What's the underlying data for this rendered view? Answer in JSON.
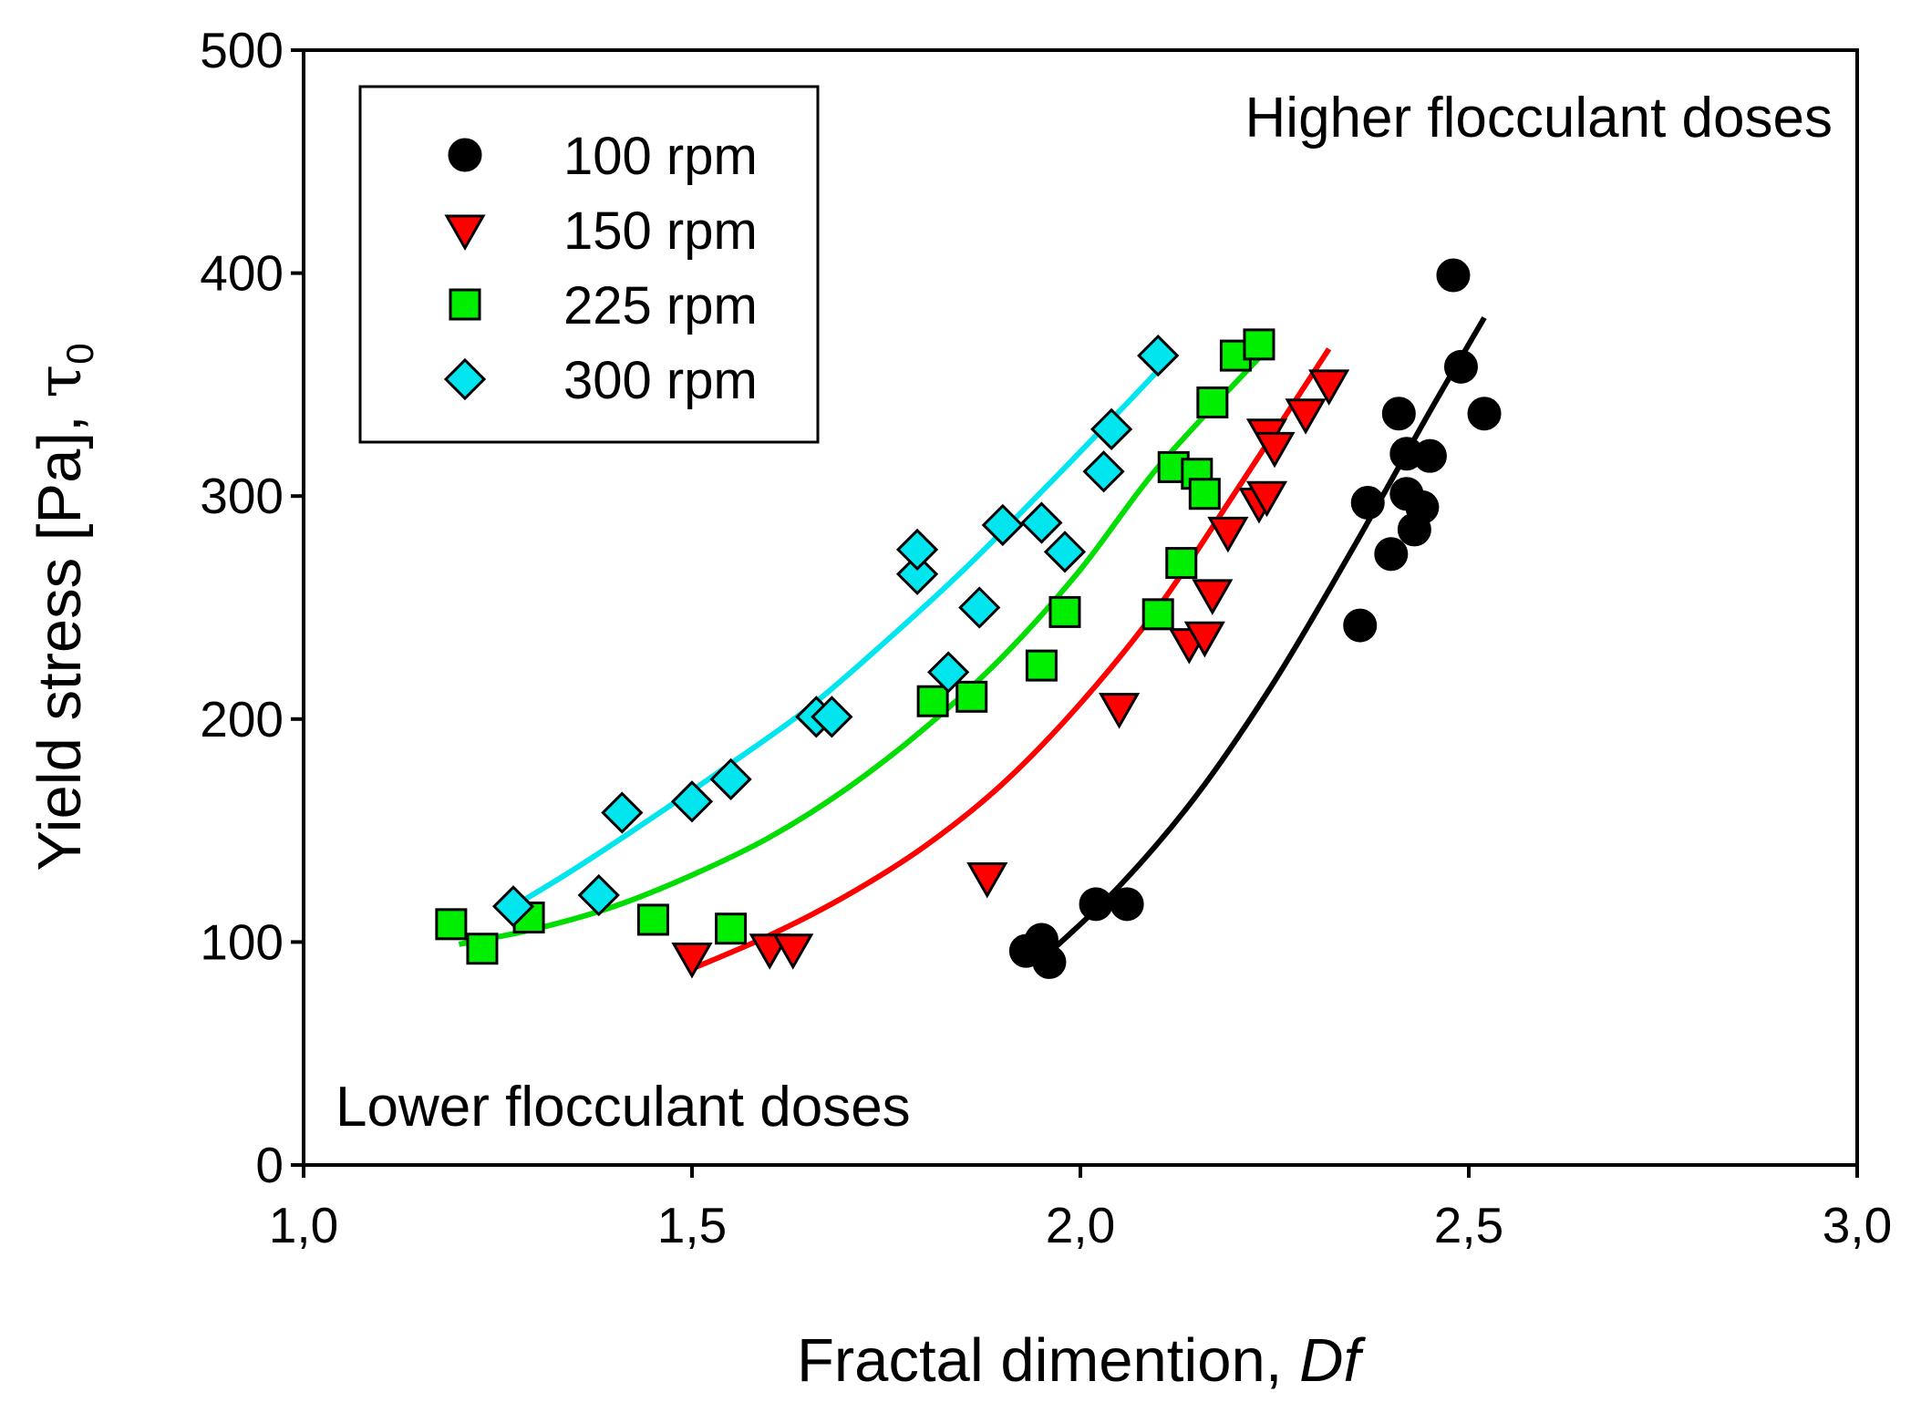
{
  "chart_data": {
    "type": "scatter",
    "title": "",
    "xlabel": "Fractal dimention, ",
    "xlabel_italic": "Df",
    "ylabel": "Yield stress [Pa], ",
    "ylabel_symbol": "τ",
    "ylabel_subscript": "0",
    "xlim": [
      1.0,
      3.0
    ],
    "ylim": [
      0,
      500
    ],
    "x_ticks": [
      1.0,
      1.5,
      2.0,
      2.5,
      3.0
    ],
    "x_tick_labels": [
      "1,0",
      "1,5",
      "2,0",
      "2,5",
      "3,0"
    ],
    "y_ticks": [
      0,
      100,
      200,
      300,
      400,
      500
    ],
    "y_tick_labels": [
      "0",
      "100",
      "200",
      "300",
      "400",
      "500"
    ],
    "grid": false,
    "legend_position": "top-left",
    "annotations": {
      "top_right": "Higher flocculant doses",
      "bottom_left": "Lower flocculant doses"
    },
    "series": [
      {
        "name": "100 rpm",
        "marker": "circle",
        "color": "#000000",
        "line_color": "#000000",
        "points": [
          [
            1.93,
            96
          ],
          [
            1.95,
            101
          ],
          [
            1.96,
            91
          ],
          [
            2.02,
            117
          ],
          [
            2.06,
            117
          ],
          [
            2.36,
            242
          ],
          [
            2.37,
            297
          ],
          [
            2.4,
            274
          ],
          [
            2.41,
            337
          ],
          [
            2.42,
            301
          ],
          [
            2.42,
            319
          ],
          [
            2.43,
            285
          ],
          [
            2.44,
            295
          ],
          [
            2.45,
            318
          ],
          [
            2.48,
            399
          ],
          [
            2.49,
            358
          ],
          [
            2.52,
            337
          ]
        ],
        "fit": [
          [
            1.95,
            92
          ],
          [
            2.05,
            125
          ],
          [
            2.15,
            166
          ],
          [
            2.25,
            217
          ],
          [
            2.35,
            276
          ],
          [
            2.45,
            338
          ],
          [
            2.52,
            380
          ]
        ]
      },
      {
        "name": "150 rpm",
        "marker": "triangle-down",
        "color": "#ff0000",
        "line_color": "#ff0000",
        "points": [
          [
            1.5,
            93
          ],
          [
            1.6,
            97
          ],
          [
            1.63,
            97
          ],
          [
            1.88,
            129
          ],
          [
            2.05,
            205
          ],
          [
            2.14,
            234
          ],
          [
            2.16,
            237
          ],
          [
            2.17,
            256
          ],
          [
            2.19,
            284
          ],
          [
            2.23,
            297
          ],
          [
            2.24,
            300
          ],
          [
            2.24,
            328
          ],
          [
            2.25,
            322
          ],
          [
            2.29,
            337
          ],
          [
            2.32,
            350
          ]
        ],
        "fit": [
          [
            1.5,
            88
          ],
          [
            1.6,
            103
          ],
          [
            1.7,
            121
          ],
          [
            1.8,
            143
          ],
          [
            1.9,
            171
          ],
          [
            2.0,
            207
          ],
          [
            2.1,
            250
          ],
          [
            2.2,
            302
          ],
          [
            2.32,
            366
          ]
        ]
      },
      {
        "name": "225 rpm",
        "marker": "square",
        "color": "#00ee00",
        "line_color": "#00dd00",
        "points": [
          [
            1.19,
            108
          ],
          [
            1.23,
            97
          ],
          [
            1.29,
            111
          ],
          [
            1.45,
            110
          ],
          [
            1.55,
            106
          ],
          [
            1.81,
            208
          ],
          [
            1.86,
            210
          ],
          [
            1.95,
            224
          ],
          [
            1.98,
            248
          ],
          [
            2.1,
            247
          ],
          [
            2.12,
            313
          ],
          [
            2.13,
            270
          ],
          [
            2.15,
            310
          ],
          [
            2.16,
            301
          ],
          [
            2.17,
            342
          ],
          [
            2.2,
            363
          ],
          [
            2.23,
            368
          ]
        ],
        "fit": [
          [
            1.2,
            99
          ],
          [
            1.3,
            106
          ],
          [
            1.4,
            116
          ],
          [
            1.5,
            130
          ],
          [
            1.6,
            147
          ],
          [
            1.7,
            169
          ],
          [
            1.8,
            196
          ],
          [
            1.9,
            228
          ],
          [
            2.0,
            267
          ],
          [
            2.1,
            313
          ],
          [
            2.23,
            362
          ]
        ]
      },
      {
        "name": "300 rpm",
        "marker": "diamond",
        "color": "#00e5ee",
        "line_color": "#00e5ee",
        "points": [
          [
            1.27,
            116
          ],
          [
            1.38,
            121
          ],
          [
            1.41,
            158
          ],
          [
            1.5,
            163
          ],
          [
            1.55,
            173
          ],
          [
            1.66,
            201
          ],
          [
            1.68,
            201
          ],
          [
            1.79,
            265
          ],
          [
            1.79,
            276
          ],
          [
            1.83,
            221
          ],
          [
            1.87,
            250
          ],
          [
            1.9,
            287
          ],
          [
            1.95,
            288
          ],
          [
            1.98,
            275
          ],
          [
            2.03,
            311
          ],
          [
            2.04,
            330
          ],
          [
            2.1,
            363
          ]
        ],
        "fit": [
          [
            1.27,
            116
          ],
          [
            1.35,
            133
          ],
          [
            1.45,
            156
          ],
          [
            1.55,
            180
          ],
          [
            1.65,
            205
          ],
          [
            1.75,
            235
          ],
          [
            1.85,
            267
          ],
          [
            1.95,
            302
          ],
          [
            2.05,
            338
          ],
          [
            2.11,
            360
          ]
        ]
      }
    ]
  }
}
